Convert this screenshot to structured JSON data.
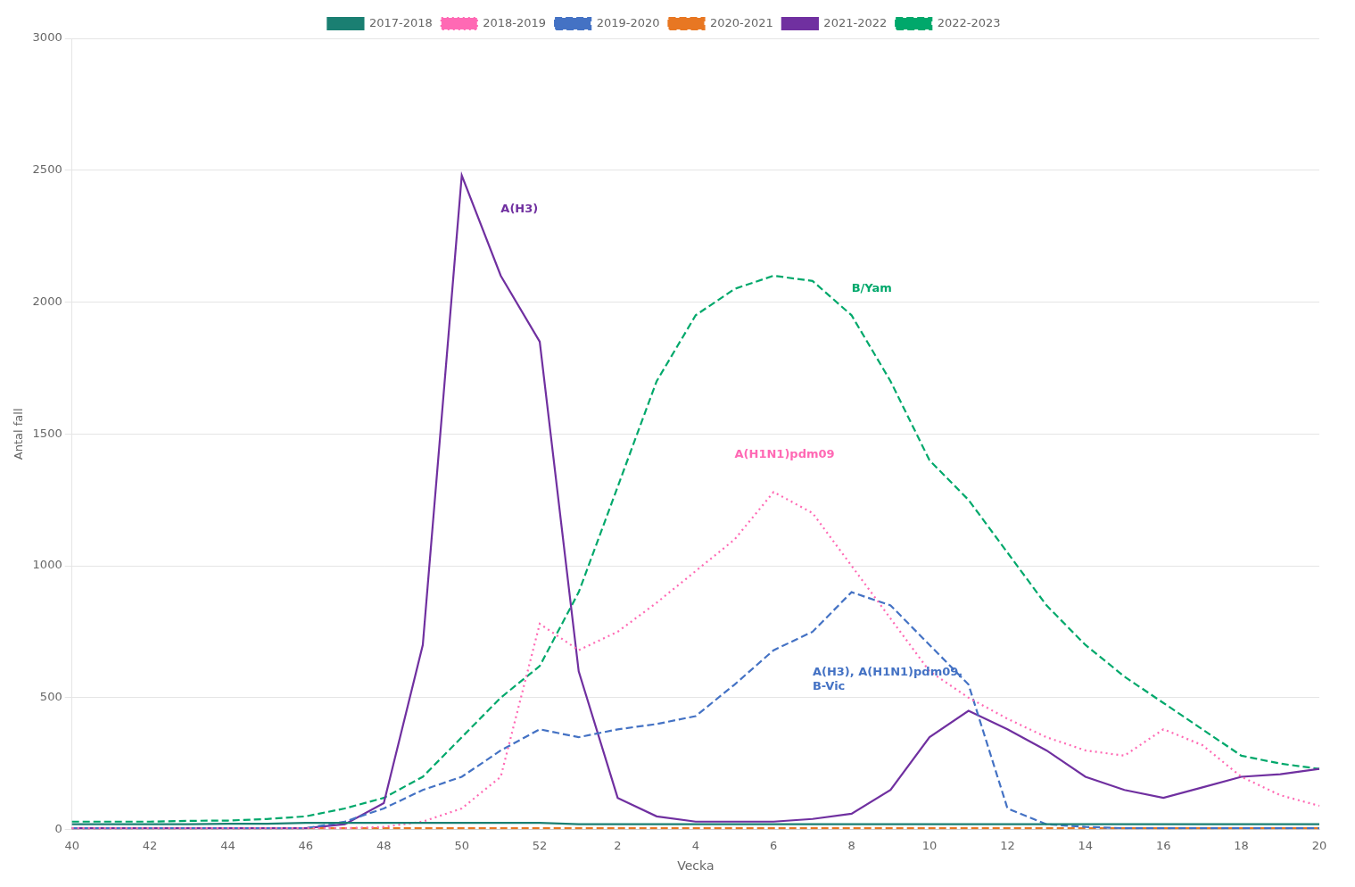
{
  "chart_data": {
    "type": "line",
    "xlabel": "Vecka",
    "ylabel": "Antal fall",
    "categories": [
      "40",
      null,
      "42",
      null,
      "44",
      null,
      "46",
      null,
      "48",
      null,
      "50",
      null,
      "52",
      null,
      "2",
      null,
      "4",
      null,
      "6",
      null,
      "8",
      null,
      "10",
      null,
      "12",
      null,
      "14",
      null,
      "16",
      null,
      "18",
      null,
      "20"
    ],
    "series": [
      {
        "name": "2017-2018",
        "color": "#1a7f72",
        "line_style": "solid",
        "values": [
          20,
          20,
          20,
          20,
          22,
          22,
          25,
          25,
          25,
          25,
          25,
          25,
          25,
          20,
          20,
          20,
          20,
          20,
          20,
          20,
          20,
          20,
          20,
          20,
          20,
          20,
          20,
          20,
          20,
          20,
          20,
          20,
          20
        ]
      },
      {
        "name": "2018-2019",
        "color": "#ff69b4",
        "line_style": "dotted",
        "values": [
          5,
          5,
          5,
          5,
          5,
          5,
          5,
          5,
          10,
          30,
          80,
          200,
          780,
          680,
          750,
          860,
          980,
          1100,
          1280,
          1200,
          1000,
          800,
          600,
          500,
          420,
          350,
          300,
          280,
          380,
          320,
          200,
          130,
          90
        ]
      },
      {
        "name": "2019-2020",
        "color": "#4472c4",
        "line_style": "dashed",
        "values": [
          5,
          5,
          5,
          5,
          5,
          5,
          5,
          30,
          80,
          150,
          200,
          300,
          380,
          350,
          380,
          400,
          430,
          550,
          680,
          750,
          900,
          850,
          700,
          550,
          80,
          20,
          10,
          5,
          5,
          5,
          5,
          5,
          5
        ]
      },
      {
        "name": "2020-2021",
        "color": "#e87722",
        "line_style": "dashed",
        "values": [
          5,
          5,
          5,
          5,
          5,
          5,
          5,
          5,
          5,
          5,
          5,
          5,
          5,
          5,
          5,
          5,
          5,
          5,
          5,
          5,
          5,
          5,
          5,
          5,
          5,
          5,
          5,
          5,
          5,
          5,
          5,
          5,
          5
        ]
      },
      {
        "name": "2021-2022",
        "color": "#7030a0",
        "line_style": "solid",
        "values": [
          5,
          5,
          5,
          5,
          5,
          5,
          5,
          20,
          100,
          700,
          2480,
          2100,
          1850,
          600,
          120,
          50,
          30,
          30,
          30,
          40,
          60,
          150,
          350,
          450,
          380,
          300,
          200,
          150,
          120,
          160,
          200,
          210,
          230
        ]
      },
      {
        "name": "2022-2023",
        "color": "#00a86b",
        "line_style": "dashed",
        "values": [
          30,
          30,
          30,
          33,
          34,
          40,
          50,
          80,
          120,
          200,
          350,
          500,
          620,
          900,
          1300,
          1700,
          1950,
          2050,
          2100,
          2080,
          1950,
          1700,
          1400,
          1250,
          1050,
          850,
          700,
          580,
          480,
          380,
          280,
          250,
          230
        ]
      }
    ],
    "annotations": [
      {
        "text": "A(H3)",
        "x": 11,
        "y": 2350,
        "color": "#7030a0"
      },
      {
        "text": "B/Yam",
        "x": 20,
        "y": 2050,
        "color": "#00a86b"
      },
      {
        "text": "A(H1N1)pdm09",
        "x": 17,
        "y": 1420,
        "color": "#ff69b4"
      },
      {
        "text": "A(H3), A(H1N1)pdm09,\nB-Vic",
        "x": 19,
        "y": 570,
        "color": "#4472c4"
      }
    ],
    "ylim": [
      0,
      3000
    ],
    "yticks": [
      0,
      500,
      1000,
      1500,
      2000,
      2500,
      3000
    ],
    "grid": "y",
    "legend": "top"
  }
}
